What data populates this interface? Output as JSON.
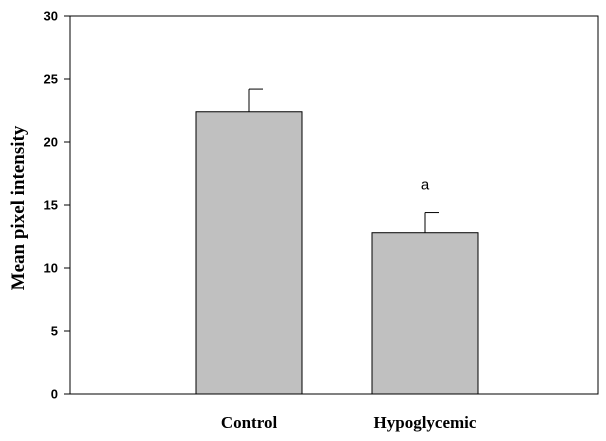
{
  "chart_data": {
    "type": "bar",
    "title": "",
    "xlabel": "",
    "ylabel": "Mean pixel intensity",
    "categories": [
      "Control",
      "Hypoglycemic"
    ],
    "values": [
      22.4,
      12.8
    ],
    "error_upper": [
      1.8,
      1.6
    ],
    "annotations": [
      "",
      "a"
    ],
    "ylim": [
      0,
      30
    ],
    "yticks": [
      0,
      5,
      10,
      15,
      20,
      25,
      30
    ],
    "grid": false,
    "legend": "none",
    "colors": {
      "bar_fill": "#c0c0c0",
      "bar_stroke": "#000000",
      "axis": "#000000"
    }
  }
}
